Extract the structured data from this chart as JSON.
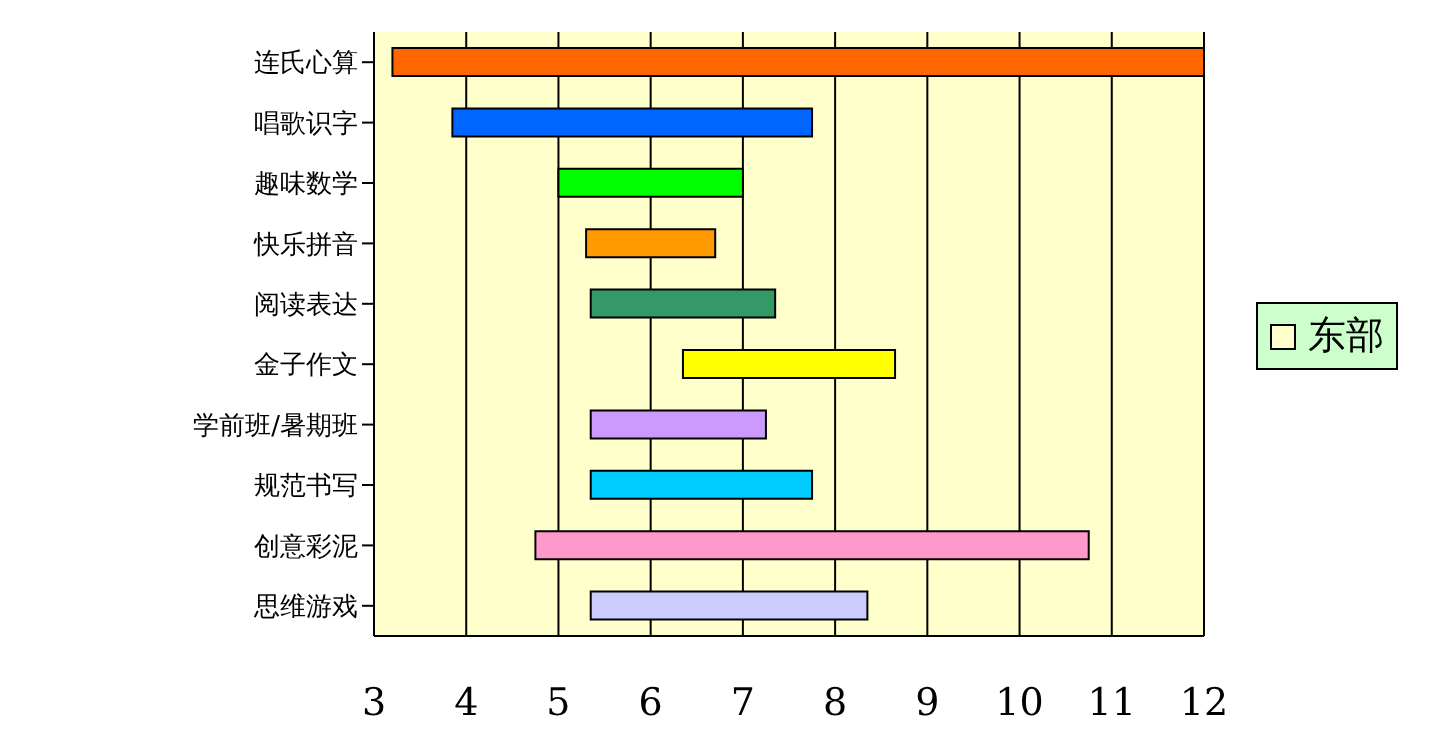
{
  "chart_data": {
    "type": "bar",
    "orientation": "horizontal",
    "categories": [
      "连氏心算",
      "唱歌识字",
      "趣味数学",
      "快乐拼音",
      "阅读表达",
      "金子作文",
      "学前班/暑期班",
      "规范书写",
      "创意彩泥",
      "思维游戏"
    ],
    "series": [
      {
        "name": "东部",
        "color": "#ffffcc",
        "values": [
          8.8,
          3.9,
          2.0,
          1.4,
          2.0,
          2.3,
          1.9,
          2.4,
          6.0,
          3.0
        ],
        "base": [
          3.2,
          3.85,
          5.0,
          5.3,
          5.35,
          6.35,
          5.35,
          5.35,
          4.75,
          5.35
        ],
        "colors": [
          "#ff6600",
          "#0066ff",
          "#00ff00",
          "#ff9900",
          "#339966",
          "#ffff00",
          "#cc99ff",
          "#00ccff",
          "#ff99cc",
          "#ccccff"
        ]
      }
    ],
    "xlim": [
      3,
      12
    ],
    "xticks": [
      3,
      4,
      5,
      6,
      7,
      8,
      9,
      10,
      11,
      12
    ],
    "grid": "x",
    "legend": "right"
  }
}
